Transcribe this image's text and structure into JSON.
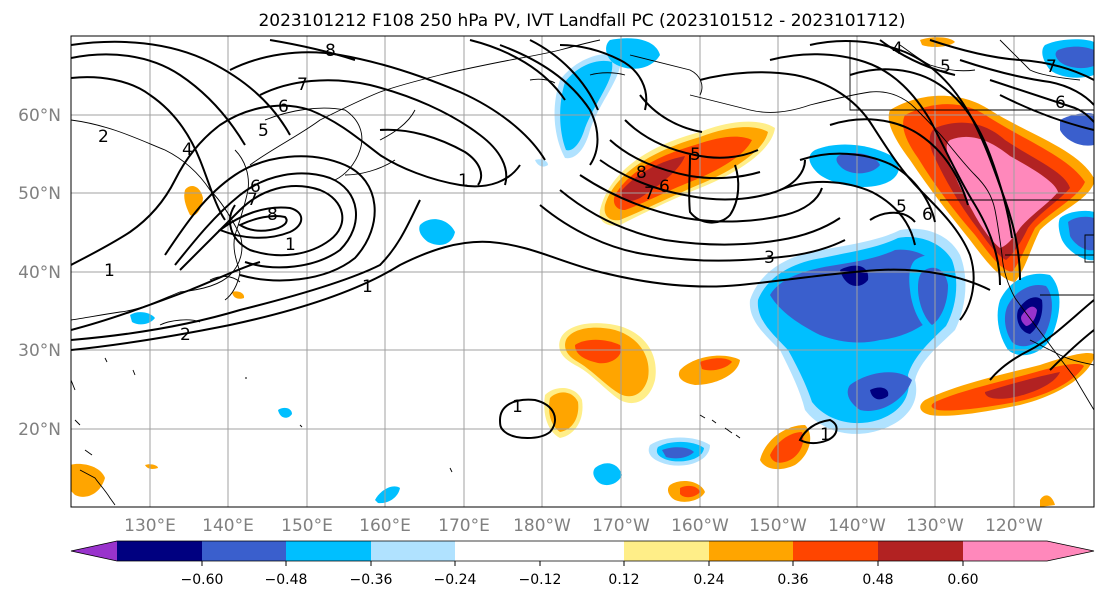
{
  "title": "2023101212 F108 250 hPa PV, IVT Landfall PC (2023101512 - 2023101712)",
  "lat_labels": [
    "20°N",
    "30°N",
    "40°N",
    "50°N",
    "60°N"
  ],
  "lon_labels": [
    "130°E",
    "140°E",
    "150°E",
    "160°E",
    "170°E",
    "180°W",
    "170°W",
    "160°W",
    "150°W",
    "140°W",
    "130°W",
    "120°W"
  ],
  "colorbar": {
    "colors": [
      "#9933cc",
      "#000080",
      "#3a5fcd",
      "#00bfff",
      "#b0e2ff",
      "#ffffff",
      "#ffee88",
      "#ffa500",
      "#ff4500",
      "#b22222",
      "#ff88bb"
    ],
    "tick_labels": [
      "−0.60",
      "−0.48",
      "−0.36",
      "−0.24",
      "−0.12",
      "0.12",
      "0.24",
      "0.36",
      "0.48",
      "0.60"
    ]
  },
  "contour_labels": [
    "8",
    "7",
    "6",
    "5",
    "4",
    "2",
    "8",
    "7",
    "6",
    "1",
    "1",
    "1",
    "2",
    "1",
    "1",
    "8",
    "7",
    "6",
    "5",
    "3",
    "1",
    "4",
    "5",
    "6",
    "5",
    "6",
    "7"
  ]
}
